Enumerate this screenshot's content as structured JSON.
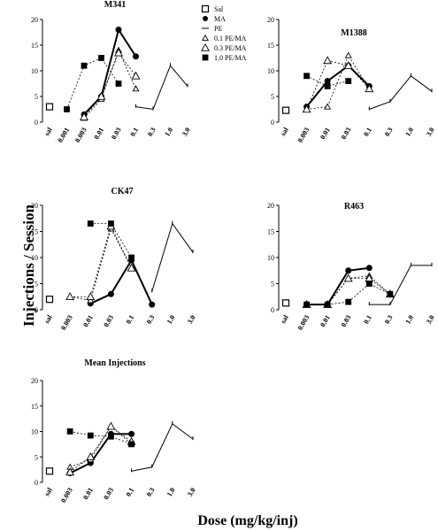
{
  "figure": {
    "ylabel": "Injections / Session",
    "xlabel": "Dose (mg/kg/inj)"
  },
  "legend": [
    {
      "key": "sal",
      "label": "Sal",
      "marker": "open-square"
    },
    {
      "key": "ma",
      "label": "MA",
      "marker": "filled-circle"
    },
    {
      "key": "pe",
      "label": "PE",
      "marker": "line"
    },
    {
      "key": "pema01",
      "label": "0.1 PE/MA",
      "marker": "open-triangle-small"
    },
    {
      "key": "pema03",
      "label": "0.3 PE/MA",
      "marker": "open-triangle"
    },
    {
      "key": "pema10",
      "label": "1.0 PE/MA",
      "marker": "filled-square"
    }
  ],
  "chart_data": [
    {
      "type": "line",
      "title": "M341",
      "ylim": [
        0,
        20
      ],
      "yticks": [
        0,
        5,
        10,
        15,
        20
      ],
      "categories": [
        "sal",
        "0.001",
        "0.003",
        "0.01",
        "0.03",
        "0.1",
        "0.3",
        "1.0",
        "3.0"
      ],
      "series": [
        {
          "key": "sal",
          "name": "Sal",
          "points": [
            {
              "x": "sal",
              "y": 3
            }
          ]
        },
        {
          "key": "ma",
          "name": "MA",
          "points": [
            {
              "x": "0.003",
              "y": 1.5
            },
            {
              "x": "0.01",
              "y": 5
            },
            {
              "x": "0.03",
              "y": 18
            },
            {
              "x": "0.1",
              "y": 12.8
            }
          ]
        },
        {
          "key": "pe",
          "name": "PE",
          "points": [
            {
              "x": "0.1",
              "y": 3
            },
            {
              "x": "0.3",
              "y": 2.5
            },
            {
              "x": "1.0",
              "y": 11
            },
            {
              "x": "3.0",
              "y": 7
            }
          ]
        },
        {
          "key": "pema01",
          "name": "0.1 PE/MA",
          "points": [
            {
              "x": "0.003",
              "y": 0.8
            },
            {
              "x": "0.01",
              "y": 4.5
            },
            {
              "x": "0.03",
              "y": 14
            },
            {
              "x": "0.1",
              "y": 6.5
            }
          ]
        },
        {
          "key": "pema03",
          "name": "0.3 PE/MA",
          "points": [
            {
              "x": "0.003",
              "y": 1
            },
            {
              "x": "0.01",
              "y": 5
            },
            {
              "x": "0.03",
              "y": 13.5
            },
            {
              "x": "0.1",
              "y": 9
            }
          ]
        },
        {
          "key": "pema10",
          "name": "1.0 PE/MA",
          "points": [
            {
              "x": "0.001",
              "y": 2.5
            },
            {
              "x": "0.003",
              "y": 11
            },
            {
              "x": "0.01",
              "y": 12.5
            },
            {
              "x": "0.03",
              "y": 7.5
            }
          ]
        }
      ]
    },
    {
      "type": "line",
      "title": "M1388",
      "ylim": [
        0,
        20
      ],
      "yticks": [
        0,
        5,
        10,
        15,
        20
      ],
      "categories": [
        "sal",
        "0.003",
        "0.01",
        "0.03",
        "0.1",
        "0.3",
        "1.0",
        "3.0"
      ],
      "series": [
        {
          "key": "sal",
          "name": "Sal",
          "points": [
            {
              "x": "sal",
              "y": 2.3
            }
          ]
        },
        {
          "key": "ma",
          "name": "MA",
          "points": [
            {
              "x": "0.003",
              "y": 3
            },
            {
              "x": "0.01",
              "y": 8
            },
            {
              "x": "0.03",
              "y": 11
            },
            {
              "x": "0.1",
              "y": 7
            }
          ]
        },
        {
          "key": "pe",
          "name": "PE",
          "points": [
            {
              "x": "0.1",
              "y": 2.5
            },
            {
              "x": "0.3",
              "y": 4
            },
            {
              "x": "1.0",
              "y": 9
            },
            {
              "x": "3.0",
              "y": 6
            }
          ]
        },
        {
          "key": "pema01",
          "name": "0.1 PE/MA",
          "points": [
            {
              "x": "0.003",
              "y": 2.5
            },
            {
              "x": "0.01",
              "y": 3
            },
            {
              "x": "0.03",
              "y": 13
            },
            {
              "x": "0.1",
              "y": 6.5
            }
          ]
        },
        {
          "key": "pema03",
          "name": "0.3 PE/MA",
          "points": [
            {
              "x": "0.003",
              "y": 2.5
            },
            {
              "x": "0.01",
              "y": 12
            },
            {
              "x": "0.03",
              "y": 11
            },
            {
              "x": "0.1",
              "y": 6.5
            }
          ]
        },
        {
          "key": "pema10",
          "name": "1.0 PE/MA",
          "points": [
            {
              "x": "0.003",
              "y": 9
            },
            {
              "x": "0.01",
              "y": 7
            },
            {
              "x": "0.03",
              "y": 8
            }
          ]
        }
      ]
    },
    {
      "type": "line",
      "title": "CK47",
      "ylim": [
        0,
        20
      ],
      "yticks": [
        0,
        5,
        10,
        15,
        20
      ],
      "categories": [
        "sal",
        "0.003",
        "0.01",
        "0.03",
        "0.1",
        "0.3",
        "1.0",
        "3.0"
      ],
      "series": [
        {
          "key": "sal",
          "name": "Sal",
          "points": [
            {
              "x": "sal",
              "y": 2
            }
          ]
        },
        {
          "key": "ma",
          "name": "MA",
          "points": [
            {
              "x": "0.01",
              "y": 1.2
            },
            {
              "x": "0.03",
              "y": 3
            },
            {
              "x": "0.1",
              "y": 9.5
            },
            {
              "x": "0.3",
              "y": 1
            }
          ]
        },
        {
          "key": "pe",
          "name": "PE",
          "points": [
            {
              "x": "0.3",
              "y": 3.5
            },
            {
              "x": "1.0",
              "y": 16.5
            },
            {
              "x": "3.0",
              "y": 11
            }
          ]
        },
        {
          "key": "pema01",
          "name": "0.1 PE/MA",
          "points": [
            {
              "x": "0.003",
              "y": 2.5
            },
            {
              "x": "0.01",
              "y": 1.8
            },
            {
              "x": "0.03",
              "y": 15.5
            },
            {
              "x": "0.1",
              "y": 8
            }
          ]
        },
        {
          "key": "pema03",
          "name": "0.3 PE/MA",
          "points": [
            {
              "x": "0.003",
              "y": 2.5
            },
            {
              "x": "0.01",
              "y": 2.5
            },
            {
              "x": "0.03",
              "y": 16
            },
            {
              "x": "0.1",
              "y": 8
            }
          ]
        },
        {
          "key": "pema10",
          "name": "1.0 PE/MA",
          "points": [
            {
              "x": "0.01",
              "y": 16.5
            },
            {
              "x": "0.03",
              "y": 16.5
            },
            {
              "x": "0.1",
              "y": 10
            }
          ]
        }
      ]
    },
    {
      "type": "line",
      "title": "R463",
      "ylim": [
        0,
        20
      ],
      "yticks": [
        0,
        5,
        10,
        15,
        20
      ],
      "categories": [
        "sal",
        "0.003",
        "0.01",
        "0.03",
        "0.1",
        "0.3",
        "1.0",
        "3.0"
      ],
      "series": [
        {
          "key": "sal",
          "name": "Sal",
          "points": [
            {
              "x": "sal",
              "y": 1.3
            }
          ]
        },
        {
          "key": "ma",
          "name": "MA",
          "points": [
            {
              "x": "0.003",
              "y": 1
            },
            {
              "x": "0.01",
              "y": 1
            },
            {
              "x": "0.03",
              "y": 7.5
            },
            {
              "x": "0.1",
              "y": 8
            }
          ]
        },
        {
          "key": "pe",
          "name": "PE",
          "points": [
            {
              "x": "0.1",
              "y": 1
            },
            {
              "x": "0.3",
              "y": 1
            },
            {
              "x": "1.0",
              "y": 8.5
            },
            {
              "x": "3.0",
              "y": 8.5
            }
          ]
        },
        {
          "key": "pema01",
          "name": "0.1 PE/MA",
          "points": [
            {
              "x": "0.003",
              "y": 1
            },
            {
              "x": "0.01",
              "y": 1
            },
            {
              "x": "0.03",
              "y": 6
            },
            {
              "x": "0.1",
              "y": 6.5
            },
            {
              "x": "0.3",
              "y": 3
            }
          ]
        },
        {
          "key": "pema03",
          "name": "0.3 PE/MA",
          "points": [
            {
              "x": "0.003",
              "y": 1
            },
            {
              "x": "0.01",
              "y": 1
            },
            {
              "x": "0.03",
              "y": 6
            },
            {
              "x": "0.1",
              "y": 6
            },
            {
              "x": "0.3",
              "y": 3
            }
          ]
        },
        {
          "key": "pema10",
          "name": "1.0 PE/MA",
          "points": [
            {
              "x": "0.003",
              "y": 1
            },
            {
              "x": "0.01",
              "y": 1
            },
            {
              "x": "0.03",
              "y": 1.5
            },
            {
              "x": "0.1",
              "y": 5
            },
            {
              "x": "0.3",
              "y": 3
            }
          ]
        }
      ]
    },
    {
      "type": "line",
      "title": "Mean Injections",
      "ylim": [
        0,
        20
      ],
      "yticks": [
        0,
        5,
        10,
        15,
        20
      ],
      "categories": [
        "sal",
        "0.003",
        "0.01",
        "0.03",
        "0.1",
        "0.3",
        "1.0",
        "3.0"
      ],
      "series": [
        {
          "key": "sal",
          "name": "Sal",
          "points": [
            {
              "x": "sal",
              "y": 2.2
            }
          ]
        },
        {
          "key": "ma",
          "name": "MA",
          "points": [
            {
              "x": "0.003",
              "y": 1.8
            },
            {
              "x": "0.01",
              "y": 3.8
            },
            {
              "x": "0.03",
              "y": 9.5
            },
            {
              "x": "0.1",
              "y": 9.5
            }
          ]
        },
        {
          "key": "pe",
          "name": "PE",
          "points": [
            {
              "x": "0.1",
              "y": 2.2
            },
            {
              "x": "0.3",
              "y": 3
            },
            {
              "x": "1.0",
              "y": 11.5
            },
            {
              "x": "3.0",
              "y": 8.5
            }
          ]
        },
        {
          "key": "pema01",
          "name": "0.1 PE/MA",
          "points": [
            {
              "x": "0.003",
              "y": 3
            },
            {
              "x": "0.01",
              "y": 4.5
            },
            {
              "x": "0.03",
              "y": 11
            },
            {
              "x": "0.1",
              "y": 7.5
            }
          ]
        },
        {
          "key": "pema03",
          "name": "0.3 PE/MA",
          "points": [
            {
              "x": "0.003",
              "y": 2
            },
            {
              "x": "0.01",
              "y": 5
            },
            {
              "x": "0.03",
              "y": 11
            },
            {
              "x": "0.1",
              "y": 8
            }
          ]
        },
        {
          "key": "pema10",
          "name": "1.0 PE/MA",
          "points": [
            {
              "x": "0.003",
              "y": 10
            },
            {
              "x": "0.01",
              "y": 9.2
            },
            {
              "x": "0.03",
              "y": 9
            },
            {
              "x": "0.1",
              "y": 7.5
            }
          ]
        }
      ]
    }
  ]
}
